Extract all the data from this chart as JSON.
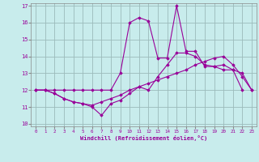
{
  "xlabel": "Windchill (Refroidissement éolien,°C)",
  "x": [
    0,
    1,
    2,
    3,
    4,
    5,
    6,
    7,
    8,
    9,
    10,
    11,
    12,
    13,
    14,
    15,
    16,
    17,
    18,
    19,
    20,
    21,
    22,
    23
  ],
  "line_spike": [
    12.0,
    12.0,
    12.0,
    12.0,
    12.0,
    12.0,
    12.0,
    12.0,
    12.0,
    13.0,
    16.0,
    16.3,
    16.1,
    13.9,
    13.9,
    17.0,
    14.3,
    14.3,
    13.4,
    13.4,
    13.5,
    13.2,
    13.0,
    12.0
  ],
  "line_mid": [
    12.0,
    12.0,
    11.8,
    11.5,
    11.3,
    11.2,
    11.0,
    10.5,
    11.2,
    11.4,
    11.8,
    12.2,
    12.0,
    12.8,
    13.5,
    14.2,
    14.2,
    14.0,
    13.5,
    13.4,
    13.2,
    13.2,
    12.0,
    null
  ],
  "line_low": [
    12.0,
    12.0,
    11.8,
    11.5,
    11.3,
    11.2,
    11.1,
    11.3,
    11.5,
    11.7,
    12.0,
    12.2,
    12.4,
    12.6,
    12.8,
    13.0,
    13.2,
    13.5,
    13.7,
    13.9,
    14.0,
    13.5,
    12.8,
    12.0
  ],
  "line_color": "#990099",
  "bg_color": "#c8ecec",
  "grid_color": "#9bbaba",
  "ylim": [
    10,
    17
  ],
  "xlim": [
    -0.5,
    23.5
  ],
  "yticks": [
    10,
    11,
    12,
    13,
    14,
    15,
    16,
    17
  ],
  "xticks": [
    0,
    1,
    2,
    3,
    4,
    5,
    6,
    7,
    8,
    9,
    10,
    11,
    12,
    13,
    14,
    15,
    16,
    17,
    18,
    19,
    20,
    21,
    22,
    23
  ]
}
